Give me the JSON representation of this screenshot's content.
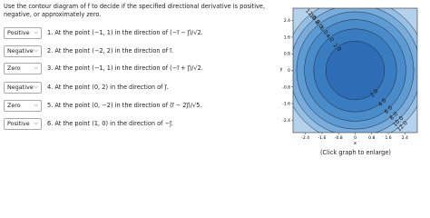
{
  "instructions": "Use the contour diagram of f to decide if the specified directional derivative is positive, negative, or approximately zero.",
  "questions": [
    {
      "answer": "Positive",
      "text": "1. At the point (−1, 1) in the direction of (−i⃗ − j⃗)/√2."
    },
    {
      "answer": "Negative",
      "text": "2. At the point (−2, 2) in the direction of i⃗."
    },
    {
      "answer": "Zero",
      "text": "3. At the point (−1, 1) in the direction of (−i⃗ + j⃗)/√2."
    },
    {
      "answer": "Negative",
      "text": "4. At the point (0, 2) in the direction of j⃗."
    },
    {
      "answer": "Zero",
      "text": "5. At the point (0, −2) in the direction of (i⃗ − 2j⃗)/√5."
    },
    {
      "answer": "Positive",
      "text": "6. At the point (1, 0) in the direction of −j⃗."
    }
  ],
  "plot": {
    "xlabel": "x",
    "ylabel": "y",
    "xlim": [
      -3,
      3
    ],
    "ylim": [
      -3,
      3
    ],
    "xticks": [
      -2.4,
      -1.6,
      -0.8,
      0,
      0.8,
      1.6,
      2.4
    ],
    "yticks": [
      -2.4,
      -1.6,
      -0.8,
      0,
      0.8,
      1.6,
      2.4
    ],
    "levels": [
      2,
      4,
      6,
      8,
      10,
      12
    ],
    "level_labels": [
      "2.0",
      "4.0",
      "6.0",
      "8.0",
      "10.0",
      "12.0"
    ],
    "caption": "(Click graph to enlarge)"
  }
}
